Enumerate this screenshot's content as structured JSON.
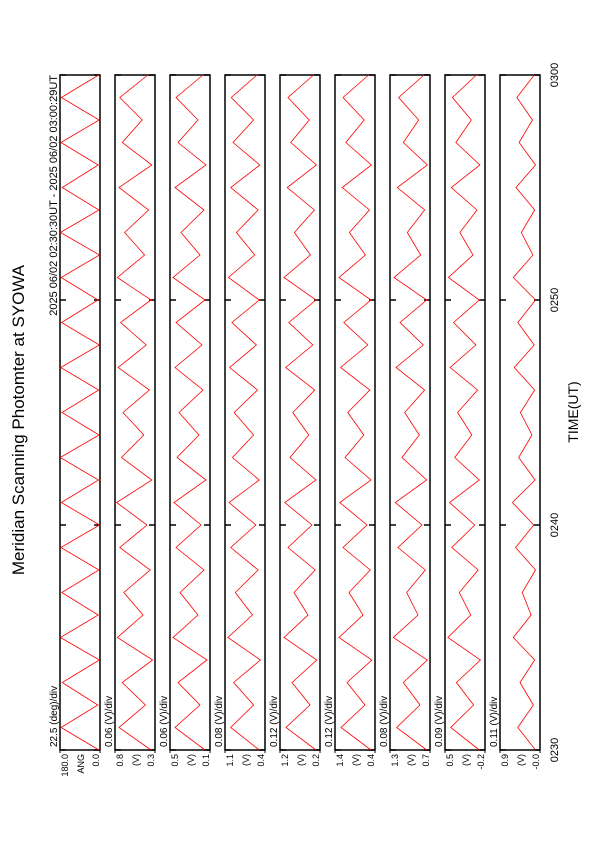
{
  "chart_data": {
    "type": "line",
    "title": "Meridian Scanning Photomter at SYOWA",
    "subtitle": "2025 06/02 02:30:30UT - 2025 06/02 03:00:29UT",
    "x_label": "TIME(UT)",
    "color": "#ff0000",
    "xlim": [
      0,
      30
    ],
    "xticks": [
      {
        "value": 0,
        "label": "0230"
      },
      {
        "value": 10,
        "label": "0240"
      },
      {
        "value": 20,
        "label": "0250"
      },
      {
        "value": 30,
        "label": "0300"
      }
    ],
    "x": [
      0,
      1,
      2,
      3,
      4,
      5,
      6,
      7,
      8,
      9,
      10,
      11,
      12,
      13,
      14,
      15,
      16,
      17,
      18,
      19,
      20,
      21,
      22,
      23,
      24,
      25,
      26,
      27,
      28,
      29,
      30
    ],
    "panels": [
      {
        "scale_label": "22.5 (deg)/div",
        "y_label": "ANG",
        "ylim": [
          0,
          180
        ],
        "yticks": [
          {
            "value": 0,
            "label": "0.0"
          },
          {
            "value": 180,
            "label": "180.0"
          }
        ],
        "values": [
          5,
          175,
          10,
          170,
          3,
          178,
          8,
          172,
          5,
          176,
          2,
          174,
          7,
          179,
          4,
          171,
          6,
          177,
          3,
          173,
          9,
          175,
          2,
          178,
          5,
          170,
          8,
          176,
          4,
          174,
          6
        ]
      },
      {
        "scale_label": "0.06 (V)/div",
        "y_label": "(V)",
        "ylim": [
          0.3,
          0.8
        ],
        "yticks": [
          0.3,
          0.8
        ],
        "values": [
          0.35,
          0.75,
          0.42,
          0.71,
          0.33,
          0.77,
          0.45,
          0.69,
          0.36,
          0.74,
          0.4,
          0.78,
          0.34,
          0.72,
          0.44,
          0.7,
          0.37,
          0.76,
          0.41,
          0.73,
          0.35,
          0.77,
          0.43,
          0.68,
          0.38,
          0.75,
          0.34,
          0.71,
          0.46,
          0.74,
          0.39
        ]
      },
      {
        "scale_label": "0.06 (V)/div",
        "y_label": "(V)",
        "ylim": [
          0.1,
          0.5
        ],
        "yticks": [
          0.1,
          0.5
        ],
        "values": [
          0.15,
          0.45,
          0.2,
          0.42,
          0.13,
          0.47,
          0.22,
          0.4,
          0.16,
          0.44,
          0.19,
          0.46,
          0.14,
          0.43,
          0.21,
          0.41,
          0.17,
          0.45,
          0.18,
          0.44,
          0.15,
          0.47,
          0.2,
          0.39,
          0.16,
          0.45,
          0.14,
          0.42,
          0.22,
          0.44,
          0.17
        ]
      },
      {
        "scale_label": "0.08 (V)/div",
        "y_label": "(V)",
        "ylim": [
          0.4,
          1.1
        ],
        "yticks": [
          0.4,
          1.1
        ],
        "values": [
          0.5,
          1.0,
          0.6,
          0.95,
          0.48,
          1.05,
          0.62,
          0.92,
          0.52,
          1.0,
          0.56,
          1.03,
          0.5,
          0.97,
          0.6,
          0.94,
          0.53,
          1.02,
          0.55,
          0.98,
          0.5,
          1.04,
          0.58,
          0.9,
          0.52,
          1.0,
          0.49,
          0.96,
          0.6,
          0.99,
          0.54
        ]
      },
      {
        "scale_label": "0.12 (V)/div",
        "y_label": "(V)",
        "ylim": [
          0.2,
          1.2
        ],
        "yticks": [
          0.2,
          1.2
        ],
        "values": [
          0.3,
          1.05,
          0.45,
          0.9,
          0.28,
          1.1,
          0.5,
          0.85,
          0.32,
          1.0,
          0.4,
          1.08,
          0.3,
          0.95,
          0.48,
          0.88,
          0.33,
          1.06,
          0.38,
          0.98,
          0.3,
          1.1,
          0.44,
          0.84,
          0.34,
          1.02,
          0.29,
          0.93,
          0.47,
          1.0,
          0.36
        ]
      },
      {
        "scale_label": "0.12 (V)/div",
        "y_label": "(V)",
        "ylim": [
          0.4,
          1.4
        ],
        "yticks": [
          0.4,
          1.4
        ],
        "values": [
          0.5,
          1.25,
          0.65,
          1.1,
          0.48,
          1.3,
          0.7,
          1.05,
          0.52,
          1.2,
          0.6,
          1.28,
          0.5,
          1.15,
          0.68,
          1.08,
          0.53,
          1.26,
          0.58,
          1.18,
          0.5,
          1.3,
          0.64,
          1.04,
          0.54,
          1.22,
          0.49,
          1.13,
          0.67,
          1.2,
          0.56
        ]
      },
      {
        "scale_label": "0.08 (V)/div",
        "y_label": "(V)",
        "ylim": [
          0.7,
          1.3
        ],
        "yticks": [
          0.7,
          1.3
        ],
        "values": [
          0.75,
          1.2,
          0.85,
          1.1,
          0.74,
          1.25,
          0.88,
          1.05,
          0.77,
          1.18,
          0.82,
          1.22,
          0.75,
          1.12,
          0.86,
          1.08,
          0.78,
          1.21,
          0.8,
          1.15,
          0.75,
          1.24,
          0.84,
          1.04,
          0.78,
          1.19,
          0.74,
          1.1,
          0.87,
          1.17,
          0.79
        ]
      },
      {
        "scale_label": "0.09 (V)/div",
        "y_label": "(V)",
        "ylim": [
          -0.2,
          0.5
        ],
        "yticks": [
          -0.2,
          0.5
        ],
        "values": [
          -0.1,
          0.4,
          0.0,
          0.3,
          -0.12,
          0.45,
          0.05,
          0.25,
          -0.08,
          0.38,
          -0.02,
          0.42,
          -0.1,
          0.33,
          0.03,
          0.28,
          -0.07,
          0.41,
          -0.04,
          0.35,
          -0.1,
          0.44,
          0.01,
          0.24,
          -0.06,
          0.39,
          -0.11,
          0.31,
          0.04,
          0.37,
          -0.05
        ]
      },
      {
        "scale_label": "0.11 (V)/div",
        "y_label": "(V)",
        "ylim": [
          0,
          0.9
        ],
        "yticks": [
          {
            "value": 0,
            "label": "-0.0"
          },
          0.9
        ],
        "values": [
          0.1,
          0.5,
          0.15,
          0.45,
          0.12,
          0.6,
          0.2,
          0.4,
          0.1,
          0.55,
          0.14,
          0.62,
          0.11,
          0.48,
          0.18,
          0.44,
          0.12,
          0.58,
          0.13,
          0.5,
          0.1,
          0.6,
          0.16,
          0.42,
          0.12,
          0.54,
          0.1,
          0.47,
          0.17,
          0.52,
          0.13
        ]
      }
    ]
  }
}
